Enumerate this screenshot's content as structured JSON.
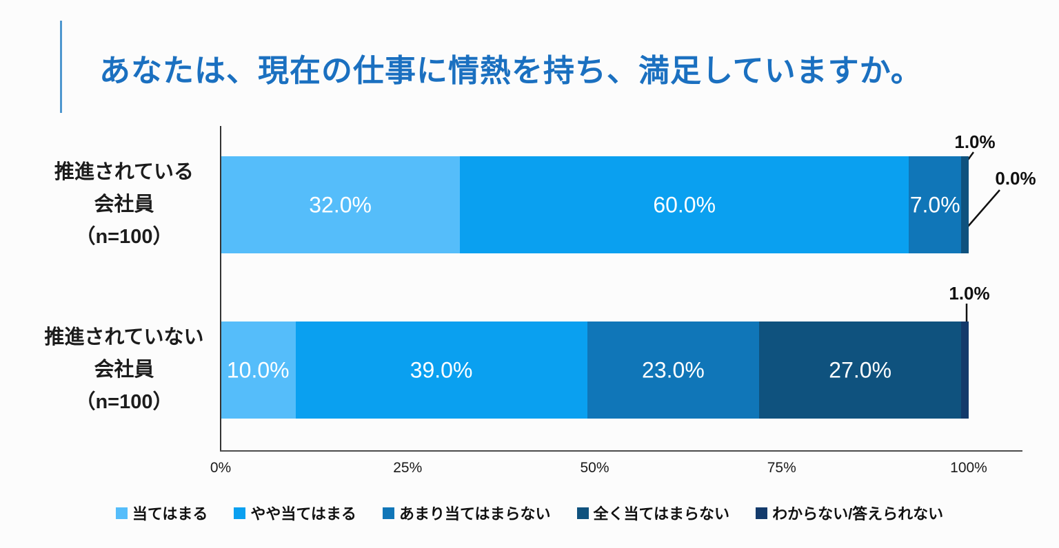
{
  "accent_color": "#1B70C0",
  "chart_data": {
    "type": "bar",
    "orientation": "horizontal",
    "stacked": true,
    "title": "あなたは、現在の仕事に情熱を持ち、満足していますか。",
    "title_color": "#1B70C0",
    "categories": [
      "推進されている\n会社員\n（n=100）",
      "推進されていない\n会社員\n（n=100）"
    ],
    "series": [
      {
        "name": "当てはまる",
        "color": "#55BDFA",
        "values": [
          32.0,
          10.0
        ]
      },
      {
        "name": "やや当てはまる",
        "color": "#0AA0F0",
        "values": [
          60.0,
          39.0
        ]
      },
      {
        "name": "あまり当てはまらない",
        "color": "#1076B8",
        "values": [
          7.0,
          23.0
        ]
      },
      {
        "name": "全く当てはまらない",
        "color": "#0F527E",
        "values": [
          1.0,
          27.0
        ]
      },
      {
        "name": "わからない/答えられない",
        "color": "#133A6B",
        "values": [
          0.0,
          1.0
        ]
      }
    ],
    "x_ticks": [
      "0%",
      "25%",
      "50%",
      "75%",
      "100%"
    ],
    "xlim": [
      0,
      100
    ],
    "value_suffix": "%",
    "grid": false,
    "legend_position": "bottom"
  }
}
